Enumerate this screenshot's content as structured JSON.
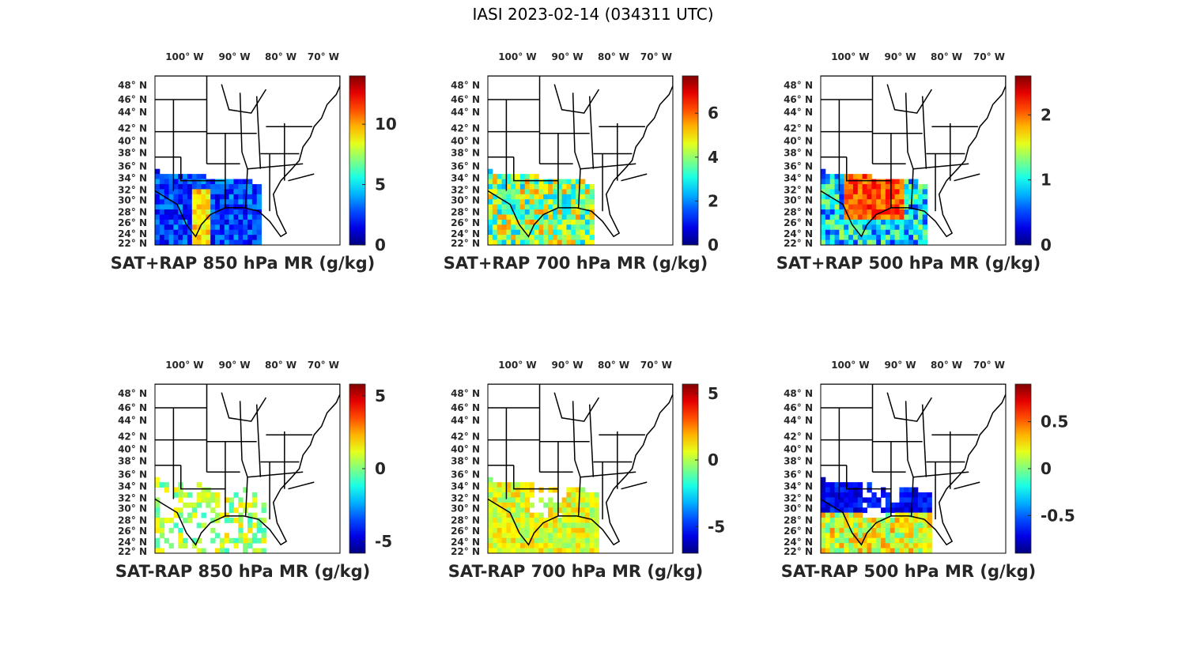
{
  "figure_title": "IASI 2023-02-14 (034311 UTC)",
  "lon_labels": [
    "100° W",
    "90° W",
    "80° W",
    "70° W"
  ],
  "lat_labels": [
    "48° N",
    "46° N",
    "44° N",
    "42° N",
    "40° N",
    "38° N",
    "36° N",
    "34° N",
    "32° N",
    "30° N",
    "28° N",
    "26° N",
    "24° N",
    "22° N"
  ],
  "colormap": "jet",
  "colors": {
    "jet_low": "#00008f",
    "jet_mid": "#7fff7f",
    "jet_high": "#800000",
    "map_lines": "#000000",
    "label_text": "#262626"
  },
  "panels": [
    {
      "id": "sat-rap-850",
      "title": "SAT+RAP 850 hPa MR (g/kg)",
      "colorbar_range": [
        0,
        14
      ],
      "colorbar_ticks": [
        {
          "value": 0,
          "label": "0"
        },
        {
          "value": 5,
          "label": "5"
        },
        {
          "value": 10,
          "label": "10"
        }
      ],
      "coverage": "swath",
      "data_pattern": "mostly-low-with-moist-band"
    },
    {
      "id": "sat-rap-700",
      "title": "SAT+RAP 700 hPa MR (g/kg)",
      "colorbar_range": [
        0,
        7.7
      ],
      "colorbar_ticks": [
        {
          "value": 0,
          "label": "0"
        },
        {
          "value": 2,
          "label": "2"
        },
        {
          "value": 4,
          "label": "4"
        },
        {
          "value": 6,
          "label": "6"
        }
      ],
      "coverage": "swath",
      "data_pattern": "mid-values-mixed"
    },
    {
      "id": "sat-rap-500",
      "title": "SAT+RAP 500 hPa MR (g/kg)",
      "colorbar_range": [
        0,
        2.6
      ],
      "colorbar_ticks": [
        {
          "value": 0,
          "label": "0"
        },
        {
          "value": 1,
          "label": "1"
        },
        {
          "value": 2,
          "label": "2"
        }
      ],
      "coverage": "swath",
      "data_pattern": "high-core-over-gulf-coast"
    },
    {
      "id": "sat-minus-rap-850",
      "title": "SAT-RAP 850 hPa MR (g/kg)",
      "colorbar_range": [
        -5.8,
        5.8
      ],
      "colorbar_ticks": [
        {
          "value": -5,
          "label": "-5"
        },
        {
          "value": 0,
          "label": "0"
        },
        {
          "value": 5,
          "label": "5"
        }
      ],
      "coverage": "scattered",
      "data_pattern": "near-zero-scattered"
    },
    {
      "id": "sat-minus-rap-700",
      "title": "SAT-RAP 700 hPa MR (g/kg)",
      "colorbar_range": [
        -7,
        5.7
      ],
      "colorbar_ticks": [
        {
          "value": -5,
          "label": "-5"
        },
        {
          "value": 0,
          "label": "0"
        },
        {
          "value": 5,
          "label": "5"
        }
      ],
      "coverage": "swath-partial",
      "data_pattern": "slightly-positive"
    },
    {
      "id": "sat-minus-rap-500",
      "title": "SAT-RAP 500 hPa MR (g/kg)",
      "colorbar_range": [
        -0.9,
        0.9
      ],
      "colorbar_ticks": [
        {
          "value": -0.5,
          "label": "-0.5"
        },
        {
          "value": 0,
          "label": "0"
        },
        {
          "value": 0.5,
          "label": "0.5"
        }
      ],
      "coverage": "swath-partial",
      "data_pattern": "negative-north-positive-south"
    }
  ]
}
